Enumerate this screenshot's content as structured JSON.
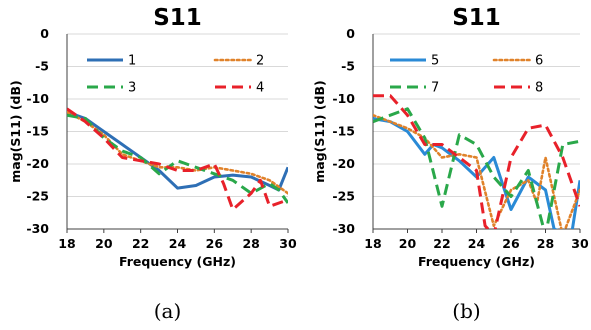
{
  "chart_data": [
    {
      "type": "line",
      "title": "S11",
      "caption": "(a)",
      "xlabel": "Frequency (GHz)",
      "ylabel": "mag(S11) (dB)",
      "xlim": [
        18,
        30
      ],
      "ylim": [
        -30,
        0
      ],
      "xticks": [
        18,
        20,
        22,
        24,
        26,
        28,
        30
      ],
      "yticks": [
        0,
        -5,
        -10,
        -15,
        -20,
        -25,
        -30
      ],
      "grid": "horizontal",
      "legend_position": "top-left, two columns",
      "series": [
        {
          "name": "1",
          "color": "#2e6fb5",
          "dash": "solid",
          "x": [
            18,
            19,
            20,
            21,
            22,
            23,
            24,
            25,
            26,
            27,
            28,
            29,
            29.5,
            30
          ],
          "y": [
            -12,
            -13,
            -15,
            -17,
            -19,
            -21,
            -23.7,
            -23.3,
            -22,
            -21.7,
            -22,
            -23.3,
            -24,
            -20.5
          ]
        },
        {
          "name": "2",
          "color": "#e0822a",
          "dash": "dotted",
          "x": [
            18,
            19,
            20,
            21,
            22,
            23,
            24,
            25,
            26,
            27,
            28,
            29,
            30
          ],
          "y": [
            -12,
            -13.5,
            -15.5,
            -18.5,
            -19.5,
            -20.5,
            -20.5,
            -21,
            -20.5,
            -21,
            -21.5,
            -22.5,
            -24.5
          ]
        },
        {
          "name": "3",
          "color": "#2aa84a",
          "dash": "dashed",
          "x": [
            18,
            19,
            20,
            21,
            22,
            23,
            24,
            25,
            26,
            27,
            28,
            29,
            29.5,
            30
          ],
          "y": [
            -12.5,
            -13,
            -16,
            -18,
            -19,
            -21.5,
            -19.5,
            -20.5,
            -21.5,
            -22.5,
            -24.5,
            -23,
            -24,
            -26
          ]
        },
        {
          "name": "4",
          "color": "#e8212a",
          "dash": "dashed",
          "x": [
            18,
            19,
            20,
            21,
            22,
            23,
            24,
            25,
            26,
            26.5,
            27,
            28,
            28.5,
            29,
            30
          ],
          "y": [
            -11.5,
            -13.5,
            -16,
            -19,
            -19.5,
            -20,
            -21,
            -21,
            -20,
            -23,
            -27,
            -24.5,
            -22.5,
            -26.5,
            -25.5
          ]
        }
      ]
    },
    {
      "type": "line",
      "title": "S11",
      "caption": "(b)",
      "xlabel": "Frequency (GHz)",
      "ylabel": "mag(S11) (dB)",
      "xlim": [
        18,
        30
      ],
      "ylim": [
        -30,
        0
      ],
      "xticks": [
        18,
        20,
        22,
        24,
        26,
        28,
        30
      ],
      "yticks": [
        0,
        -5,
        -10,
        -15,
        -20,
        -25,
        -30
      ],
      "grid": "horizontal",
      "legend_position": "top-right, two columns",
      "series": [
        {
          "name": "5",
          "color": "#2a8ad6",
          "dash": "solid",
          "x": [
            18,
            19,
            20,
            21,
            21.5,
            22,
            23,
            24,
            25,
            26,
            27,
            27.5,
            28,
            28.5,
            29.5,
            30
          ],
          "y": [
            -13,
            -13.5,
            -15,
            -18.5,
            -17,
            -17.5,
            -19.5,
            -22,
            -19,
            -27,
            -22,
            -23,
            -24,
            -30,
            -31,
            -22.5
          ]
        },
        {
          "name": "6",
          "color": "#e0822a",
          "dash": "dotted",
          "x": [
            18,
            19,
            20,
            21,
            22,
            23,
            24,
            25,
            26,
            27,
            27.5,
            28,
            29,
            30
          ],
          "y": [
            -12.5,
            -13.5,
            -14.5,
            -16,
            -19,
            -18.5,
            -19,
            -29.5,
            -24,
            -22.5,
            -26,
            -19,
            -31,
            -24
          ]
        },
        {
          "name": "7",
          "color": "#2aa84a",
          "dash": "dashed",
          "x": [
            18,
            19,
            20,
            21,
            22,
            23,
            24,
            25,
            26,
            27,
            28,
            29,
            30
          ],
          "y": [
            -13.5,
            -12.5,
            -11.5,
            -16,
            -26.5,
            -15.5,
            -17,
            -22,
            -25,
            -21,
            -31,
            -17,
            -16.5
          ]
        },
        {
          "name": "8",
          "color": "#e8212a",
          "dash": "dashed",
          "x": [
            18,
            19,
            20,
            21,
            22,
            23,
            24,
            24.5,
            25,
            26,
            27,
            28,
            29,
            30
          ],
          "y": [
            -9.5,
            -9.5,
            -12.5,
            -17,
            -17,
            -19,
            -21,
            -29.5,
            -31,
            -19,
            -14.5,
            -14,
            -19,
            -26.5
          ]
        }
      ]
    }
  ]
}
